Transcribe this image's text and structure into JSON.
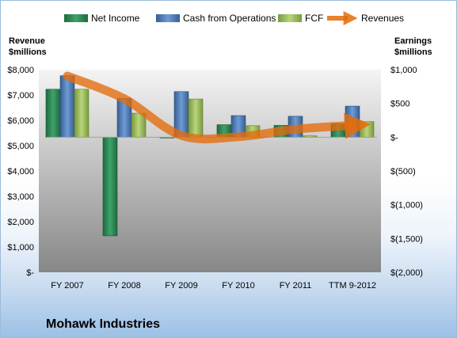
{
  "chart_data": {
    "type": "bar",
    "title": "Mohawk Industries",
    "categories": [
      "FY 2007",
      "FY 2008",
      "FY 2009",
      "FY 2010",
      "FY 2011",
      "TTM 9-2012"
    ],
    "left_axis": {
      "label_line1": "Revenue",
      "label_line2": "$millions",
      "ylim": [
        0,
        8000
      ],
      "ticks": [
        0,
        1000,
        2000,
        3000,
        4000,
        5000,
        6000,
        7000,
        8000
      ],
      "tick_labels": [
        "$-",
        "$1,000",
        "$2,000",
        "$3,000",
        "$4,000",
        "$5,000",
        "$6,000",
        "$7,000",
        "$8,000"
      ]
    },
    "right_axis": {
      "label_line1": "Earnings",
      "label_line2": "$millions",
      "ylim": [
        -2000,
        1000
      ],
      "ticks": [
        -2000,
        -1500,
        -1000,
        -500,
        0,
        500,
        1000
      ],
      "tick_labels": [
        "$(2,000)",
        "$(1,500)",
        "$(1,000)",
        "$(500)",
        "$-",
        "$500",
        "$1,000"
      ]
    },
    "series": [
      {
        "name": "Net Income",
        "axis": "right",
        "kind": "bar",
        "color": "#2e8b57",
        "values": [
          710,
          -1460,
          -5,
          185,
          175,
          200
        ]
      },
      {
        "name": "Cash from Operations",
        "axis": "right",
        "kind": "bar",
        "color": "#4f81bd",
        "values": [
          910,
          575,
          675,
          320,
          310,
          460
        ]
      },
      {
        "name": "FCF",
        "axis": "right",
        "kind": "bar",
        "color": "#9bbb59",
        "values": [
          710,
          355,
          565,
          170,
          20,
          230
        ]
      },
      {
        "name": "Revenues",
        "axis": "left",
        "kind": "line",
        "color": "#e46c0a",
        "values": [
          7750,
          6850,
          5400,
          5350,
          5650,
          5800
        ]
      }
    ],
    "grid": false,
    "legend_position": "top"
  }
}
